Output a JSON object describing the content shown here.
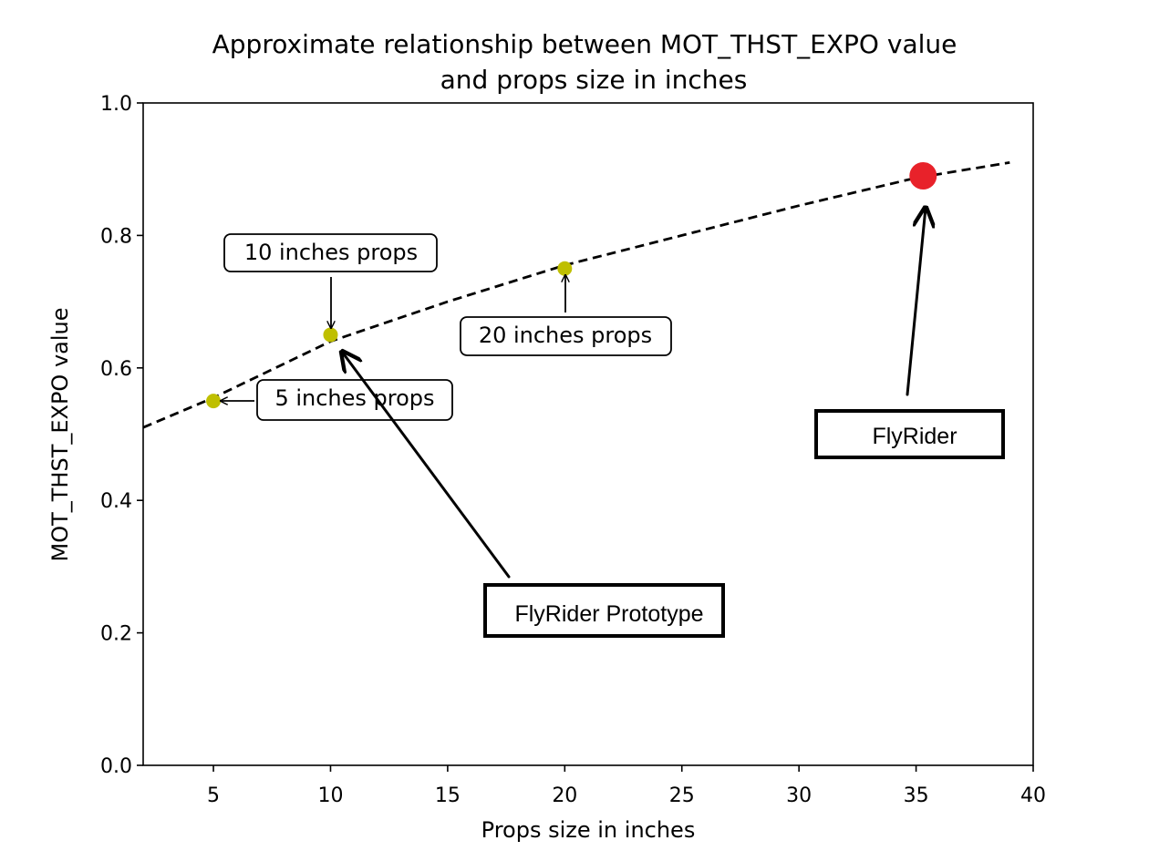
{
  "chart_data": {
    "type": "scatter",
    "title_lines": [
      "Approximate relationship between MOT_THST_EXPO value",
      "and props size in inches"
    ],
    "xlabel": "Props size in inches",
    "ylabel": "MOT_THST_EXPO value",
    "xlim": [
      2,
      40
    ],
    "ylim": [
      0.0,
      1.0
    ],
    "xticks": [
      5,
      10,
      15,
      20,
      25,
      30,
      35,
      40
    ],
    "yticks": [
      0.0,
      0.2,
      0.4,
      0.6,
      0.8,
      1.0
    ],
    "ytick_labels": [
      "0.0",
      "0.2",
      "0.4",
      "0.6",
      "0.8",
      "1.0"
    ],
    "grid": false,
    "curve": {
      "style": "dashed",
      "color": "#000000",
      "x": [
        2,
        5,
        10,
        15,
        20,
        25,
        30,
        35,
        39
      ],
      "y": [
        0.51,
        0.555,
        0.64,
        0.7,
        0.755,
        0.8,
        0.845,
        0.887,
        0.91
      ]
    },
    "points": [
      {
        "x": 5,
        "y": 0.55,
        "color": "#bfbf00"
      },
      {
        "x": 10,
        "y": 0.65,
        "color": "#bfbf00"
      },
      {
        "x": 20,
        "y": 0.75,
        "color": "#bfbf00"
      }
    ],
    "highlight_point": {
      "x": 35.3,
      "y": 0.89,
      "color": "#e8222a"
    },
    "annotations": [
      {
        "text": "5 inches props",
        "target": [
          5,
          0.55
        ]
      },
      {
        "text": "10 inches props",
        "target": [
          10,
          0.65
        ]
      },
      {
        "text": "20 inches props",
        "target": [
          20,
          0.75
        ]
      }
    ],
    "callouts": [
      {
        "text": "FlyRider Prototype",
        "target": [
          10.4,
          0.625
        ]
      },
      {
        "text": "FlyRider",
        "target": [
          35.4,
          0.85
        ]
      }
    ]
  }
}
